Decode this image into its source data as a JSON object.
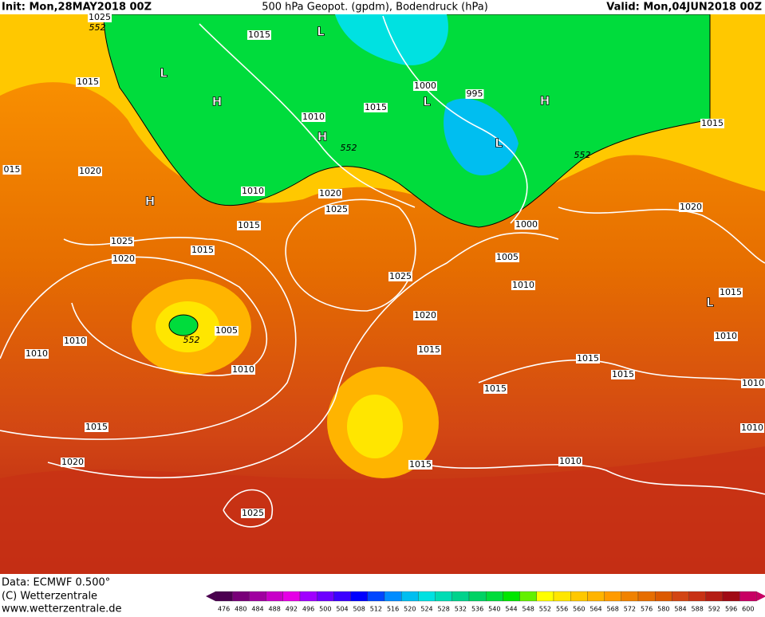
{
  "header": {
    "init": "Init: Mon,28MAY2018 00Z",
    "title": "500 hPa Geopot. (gpdm), Bodendruck (hPa)",
    "valid": "Valid: Mon,04JUN2018 00Z"
  },
  "footer": {
    "data": "Data: ECMWF   0.500°",
    "copyright": "(C) Wetterzentrale",
    "url": "www.wetterzentrale.de"
  },
  "colorbar": {
    "labels": [
      476,
      480,
      484,
      488,
      492,
      496,
      500,
      504,
      508,
      512,
      516,
      520,
      524,
      528,
      532,
      536,
      540,
      544,
      548,
      552,
      556,
      560,
      564,
      568,
      572,
      576,
      580,
      584,
      588,
      592,
      596,
      600
    ],
    "colors": [
      "#4b0050",
      "#780078",
      "#a000a0",
      "#c800c8",
      "#e600e6",
      "#a000ff",
      "#6e00ff",
      "#3c00ff",
      "#0000ff",
      "#0046ff",
      "#008cff",
      "#00bef0",
      "#00e1e1",
      "#00dcb4",
      "#00d28c",
      "#00d264",
      "#00dc3c",
      "#00e600",
      "#64f000",
      "#ffff00",
      "#ffe600",
      "#ffc800",
      "#ffb400",
      "#ff9b00",
      "#f08200",
      "#e66e00",
      "#dc5a00",
      "#d24614",
      "#c83214",
      "#b41e14",
      "#a00a14",
      "#c80064"
    ]
  },
  "map_labels": [
    "1025",
    "552",
    "1015",
    "L",
    "1015",
    "L",
    "H",
    "1000",
    "995",
    "L",
    "H",
    "1010",
    "1015",
    "H",
    "552",
    "L",
    "1015",
    "015",
    "1020",
    "552",
    "H",
    "1010",
    "1020",
    "1025",
    "1015",
    "1000",
    "1020",
    "1025",
    "1015",
    "1020",
    "1005",
    "1025",
    "1010",
    "1015",
    "L",
    "1020",
    "1005",
    "552",
    "1010",
    "1010",
    "1015",
    "1010",
    "1015",
    "1015",
    "1010",
    "1015",
    "1010",
    "1015",
    "1010",
    "1020",
    "1015",
    "1010",
    "1025"
  ]
}
